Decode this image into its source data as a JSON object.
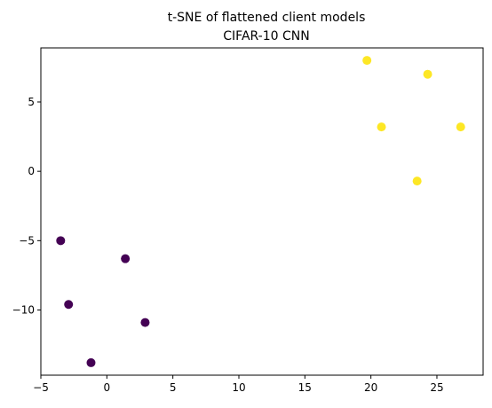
{
  "chart_data": {
    "type": "scatter",
    "title": "t-SNE of flattened client models",
    "subtitle": "CIFAR-10 CNN",
    "xlabel": "",
    "ylabel": "",
    "xlim": [
      -5,
      28.5
    ],
    "ylim": [
      -14.7,
      8.9
    ],
    "x_ticks": [
      -5,
      0,
      5,
      10,
      15,
      20,
      25
    ],
    "y_ticks": [
      -10,
      -5,
      0,
      5
    ],
    "x_tick_labels": [
      "−5",
      "0",
      "5",
      "10",
      "15",
      "20",
      "25"
    ],
    "y_tick_labels": [
      "−10",
      "−5",
      "0",
      "5"
    ],
    "grid": false,
    "legend": "none",
    "series": [
      {
        "color": "#440154",
        "points": [
          {
            "x": -3.5,
            "y": -5.0
          },
          {
            "x": 1.4,
            "y": -6.3
          },
          {
            "x": -2.9,
            "y": -9.6
          },
          {
            "x": 2.9,
            "y": -10.9
          },
          {
            "x": -1.2,
            "y": -13.8
          }
        ]
      },
      {
        "color": "#fde725",
        "points": [
          {
            "x": 19.7,
            "y": 8.0
          },
          {
            "x": 24.3,
            "y": 7.0
          },
          {
            "x": 20.8,
            "y": 3.2
          },
          {
            "x": 26.8,
            "y": 3.2
          },
          {
            "x": 23.5,
            "y": -0.7
          }
        ]
      }
    ]
  }
}
